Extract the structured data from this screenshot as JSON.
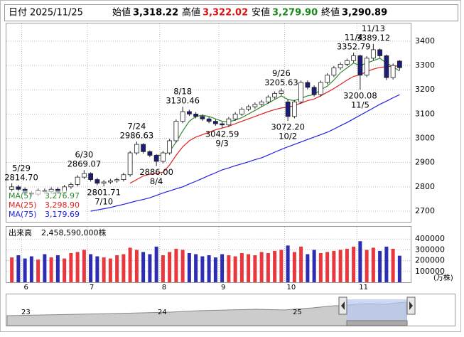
{
  "header": {
    "date_label": "日付",
    "date": "2025/11/25",
    "fields": [
      {
        "label": "始値",
        "value": "3,318.22",
        "color": "#000000"
      },
      {
        "label": "高値",
        "value": "3,322.02",
        "color": "#e01010"
      },
      {
        "label": "安値",
        "value": "3,279.90",
        "color": "#1a8a1a"
      },
      {
        "label": "終値",
        "value": "3,290.89",
        "color": "#000000"
      }
    ]
  },
  "chart_data": [
    {
      "type": "candlestick",
      "categories": [
        null,
        null,
        "6",
        null,
        null,
        null,
        null,
        null,
        null,
        null,
        null,
        null,
        "7",
        null,
        null,
        null,
        null,
        null,
        null,
        null,
        null,
        null,
        null,
        "8",
        null,
        null,
        null,
        null,
        null,
        null,
        null,
        null,
        "9",
        null,
        null,
        null,
        null,
        null,
        null,
        null,
        null,
        null,
        "10",
        null,
        null,
        null,
        null,
        null,
        null,
        null,
        null,
        null,
        null,
        "11",
        null,
        null,
        null,
        null,
        null,
        null
      ],
      "open": [
        2790,
        2800,
        2790,
        2775,
        2770,
        2785,
        2780,
        2790,
        2778,
        2800,
        2810,
        2840,
        2855,
        2830,
        2815,
        2820,
        2825,
        2830,
        2850,
        2940,
        2975,
        2945,
        2930,
        2905,
        2940,
        2990,
        3070,
        3110,
        3100,
        3090,
        3080,
        3070,
        3060,
        3055,
        3080,
        3100,
        3120,
        3130,
        3140,
        3150,
        3170,
        3185,
        3150,
        3090,
        3150,
        3230,
        3210,
        3180,
        3230,
        3260,
        3290,
        3305,
        3320,
        3340,
        3260,
        3330,
        3365,
        3340,
        3250,
        3318.22
      ],
      "high": [
        2814.7,
        2808,
        2798,
        2783,
        2793,
        2793,
        2798,
        2798,
        2808,
        2818,
        2848,
        2869.07,
        2860,
        2838,
        2828,
        2833,
        2838,
        2858,
        2948,
        2986.63,
        2980,
        2950,
        2935,
        2948,
        2998,
        3078,
        3130.46,
        3118,
        3108,
        3098,
        3088,
        3078,
        3068,
        3088,
        3108,
        3128,
        3138,
        3148,
        3158,
        3178,
        3193,
        3205.63,
        3160,
        3158,
        3238,
        3238,
        3218,
        3238,
        3268,
        3298,
        3313,
        3328,
        3352.79,
        3345,
        3338,
        3389.12,
        3370,
        3345,
        3308,
        3322.02
      ],
      "low": [
        2780,
        2780,
        2765,
        2760,
        2762,
        2772,
        2772,
        2770,
        2770,
        2792,
        2802,
        2832,
        2822,
        2807,
        2801.71,
        2812,
        2817,
        2822,
        2842,
        2932,
        2937,
        2922,
        2886,
        2897,
        2932,
        2982,
        3062,
        3092,
        3082,
        3072,
        3062,
        3052,
        3042.59,
        3047,
        3072,
        3092,
        3112,
        3122,
        3132,
        3142,
        3162,
        3177,
        3072.2,
        3082,
        3142,
        3202,
        3172,
        3172,
        3222,
        3252,
        3282,
        3297,
        3312,
        3200.08,
        3252,
        3322,
        3332,
        3240,
        3242,
        3279.9
      ],
      "close": [
        2800,
        2790,
        2775,
        2770,
        2785,
        2780,
        2790,
        2778,
        2800,
        2810,
        2840,
        2855,
        2830,
        2815,
        2820,
        2825,
        2830,
        2850,
        2940,
        2975,
        2945,
        2930,
        2905,
        2940,
        2990,
        3070,
        3110,
        3100,
        3090,
        3080,
        3070,
        3060,
        3055,
        3080,
        3100,
        3120,
        3130,
        3140,
        3150,
        3170,
        3185,
        3195,
        3090,
        3150,
        3230,
        3210,
        3180,
        3230,
        3260,
        3290,
        3305,
        3320,
        3340,
        3260,
        3330,
        3365,
        3340,
        3250,
        3300,
        3290.89
      ],
      "up_color": "#ffffff",
      "down_color": "#1c1c7a",
      "ylim": [
        2656,
        3476
      ],
      "yticks": [
        2700,
        2800,
        2900,
        3000,
        3100,
        3200,
        3300,
        3400
      ],
      "grid": true,
      "series": [
        {
          "name": "MA(5)",
          "color": "#2e8b2e",
          "value_label": "3,276.97",
          "values": [
            null,
            null,
            null,
            null,
            null,
            null,
            null,
            null,
            null,
            null,
            null,
            null,
            null,
            null,
            null,
            null,
            null,
            null,
            null,
            null,
            null,
            null,
            2930,
            2930,
            2945,
            2985,
            3030,
            3070,
            3090,
            3095,
            3090,
            3080,
            3070,
            3068,
            3075,
            3085,
            3100,
            3115,
            3130,
            3145,
            3160,
            3175,
            3160,
            3155,
            3165,
            3175,
            3180,
            3200,
            3215,
            3240,
            3270,
            3290,
            3310,
            3300,
            3310,
            3320,
            3330,
            3310,
            3295,
            3276.97
          ]
        },
        {
          "name": "MA(25)",
          "color": "#e02020",
          "value_label": "3,298.90",
          "values": [
            null,
            null,
            null,
            null,
            null,
            null,
            null,
            null,
            null,
            null,
            null,
            null,
            null,
            null,
            null,
            null,
            null,
            null,
            2815,
            2830,
            2845,
            2852,
            2855,
            2860,
            2890,
            2930,
            2965,
            2990,
            3005,
            3015,
            3025,
            3035,
            3042,
            3050,
            3060,
            3070,
            3080,
            3090,
            3100,
            3110,
            3118,
            3125,
            3128,
            3135,
            3145,
            3155,
            3162,
            3175,
            3190,
            3205,
            3222,
            3240,
            3255,
            3262,
            3275,
            3285,
            3292,
            3295,
            3297,
            3298.9
          ]
        },
        {
          "name": "MA(75)",
          "color": "#2020e0",
          "value_label": "3,179.69",
          "values": [
            null,
            null,
            null,
            null,
            null,
            null,
            null,
            null,
            null,
            null,
            null,
            null,
            2700,
            2705,
            2710,
            2715,
            2722,
            2728,
            2735,
            2742,
            2748,
            2755,
            2765,
            2775,
            2783,
            2792,
            2800,
            2812,
            2823,
            2835,
            2847,
            2858,
            2870,
            2878,
            2887,
            2895,
            2903,
            2912,
            2920,
            2931,
            2943,
            2954,
            2965,
            2975,
            2985,
            2995,
            3005,
            3015,
            3025,
            3038,
            3052,
            3065,
            3080,
            3095,
            3110,
            3125,
            3140,
            3153,
            3167,
            3179.69
          ]
        }
      ],
      "annotations": [
        {
          "kind": "high",
          "date": "5/29",
          "value": 2814.7,
          "label": "2814.70"
        },
        {
          "kind": "high",
          "date": "6/30",
          "value": 2869.07,
          "label": "2869.07"
        },
        {
          "kind": "low",
          "date": "7/10",
          "value": 2801.71,
          "label": "2801.71"
        },
        {
          "kind": "high",
          "date": "7/24",
          "value": 2986.63,
          "label": "2986.63"
        },
        {
          "kind": "low",
          "date": "8/4",
          "value": 2886,
          "label": "2886.00"
        },
        {
          "kind": "high",
          "date": "8/18",
          "value": 3130.46,
          "label": "3130.46"
        },
        {
          "kind": "low",
          "date": "9/3",
          "value": 3042.59,
          "label": "3042.59"
        },
        {
          "kind": "high",
          "date": "9/26",
          "value": 3205.63,
          "label": "3205.63"
        },
        {
          "kind": "low",
          "date": "10/2",
          "value": 3072.2,
          "label": "3072.20"
        },
        {
          "kind": "high",
          "date": "11/4",
          "value": 3352.79,
          "label": "3352.79"
        },
        {
          "kind": "high",
          "date": "11/13",
          "value": 3389.12,
          "label": "3389.12"
        },
        {
          "kind": "low",
          "date": "11/5",
          "value": 3200.08,
          "label": "3200.08"
        }
      ]
    },
    {
      "type": "bar",
      "title": "出来高",
      "value_label": "2,458,590,000株",
      "unit": "(万株)",
      "values": [
        230000,
        250000,
        220000,
        240000,
        210000,
        260000,
        230000,
        250000,
        220000,
        270000,
        280000,
        300000,
        260000,
        240000,
        230000,
        220000,
        250000,
        260000,
        320000,
        300000,
        280000,
        260000,
        330000,
        250000,
        280000,
        310000,
        300000,
        270000,
        260000,
        240000,
        250000,
        230000,
        260000,
        250000,
        240000,
        270000,
        260000,
        250000,
        280000,
        270000,
        290000,
        300000,
        340000,
        280000,
        330000,
        260000,
        300000,
        270000,
        280000,
        290000,
        300000,
        310000,
        330000,
        380000,
        300000,
        320000,
        290000,
        330000,
        310000,
        245859
      ],
      "up_color": "#e8383d",
      "down_color": "#2d2db4",
      "ylim": [
        0,
        520000
      ],
      "yticks": [
        100000,
        200000,
        300000,
        400000
      ]
    }
  ],
  "navigator": {
    "labels": [
      "23",
      "24",
      "25"
    ]
  }
}
